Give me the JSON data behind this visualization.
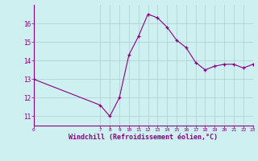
{
  "x": [
    0,
    7,
    8,
    9,
    10,
    11,
    12,
    13,
    14,
    15,
    16,
    17,
    18,
    19,
    20,
    21,
    22,
    23
  ],
  "y": [
    13.0,
    11.6,
    11.0,
    12.0,
    14.3,
    15.3,
    16.5,
    16.3,
    15.8,
    15.1,
    14.7,
    13.9,
    13.5,
    13.7,
    13.8,
    13.8,
    13.6,
    13.8
  ],
  "line_color": "#880088",
  "marker_color": "#880088",
  "bg_color": "#cff0f0",
  "grid_color": "#aacece",
  "xlabel": "Windchill (Refroidissement éolien,°C)",
  "xlabel_color": "#880088",
  "tick_color": "#880088",
  "ylim": [
    10.5,
    17.0
  ],
  "xlim": [
    0,
    23
  ],
  "yticks": [
    11,
    12,
    13,
    14,
    15,
    16
  ],
  "xticks": [
    0,
    7,
    8,
    9,
    10,
    11,
    12,
    13,
    14,
    15,
    16,
    17,
    18,
    19,
    20,
    21,
    22,
    23
  ]
}
